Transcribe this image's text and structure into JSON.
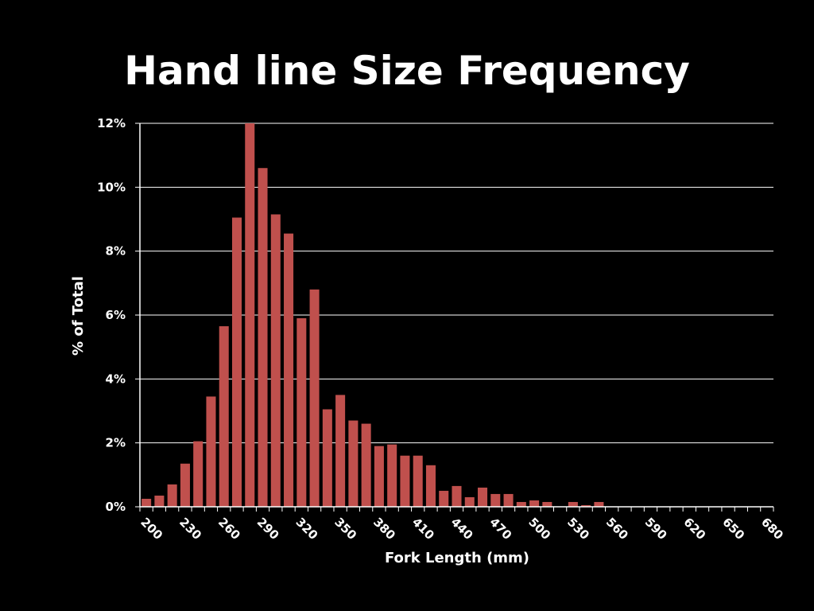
{
  "chart_data": {
    "type": "bar",
    "title": "Hand line Size Frequency",
    "xlabel": "Fork Length (mm)",
    "ylabel": "% of Total",
    "y_tick_labels": [
      "0%",
      "2%",
      "4%",
      "6%",
      "8%",
      "10%",
      "12%"
    ],
    "y_ticks": [
      0,
      2,
      4,
      6,
      8,
      10,
      12
    ],
    "ylim": [
      0,
      12
    ],
    "x_tick_labels": [
      "200",
      "230",
      "260",
      "290",
      "320",
      "350",
      "380",
      "410",
      "440",
      "470",
      "500",
      "530",
      "560",
      "590",
      "620",
      "650",
      "680"
    ],
    "categories": [
      200,
      210,
      220,
      230,
      240,
      250,
      260,
      270,
      280,
      290,
      300,
      310,
      320,
      330,
      340,
      350,
      360,
      370,
      380,
      390,
      400,
      410,
      420,
      430,
      440,
      450,
      460,
      470,
      480,
      490,
      500,
      510,
      520,
      530,
      540,
      550,
      560,
      570,
      580,
      590,
      600,
      610,
      620,
      630,
      640,
      650,
      660,
      670,
      680
    ],
    "values": [
      0.25,
      0.35,
      0.7,
      1.35,
      2.05,
      3.45,
      5.65,
      9.05,
      12.0,
      10.6,
      9.15,
      8.55,
      5.9,
      6.8,
      3.05,
      3.5,
      2.7,
      2.6,
      1.9,
      1.95,
      1.6,
      1.6,
      1.3,
      0.5,
      0.65,
      0.3,
      0.6,
      0.4,
      0.4,
      0.15,
      0.2,
      0.15,
      0,
      0.15,
      0.05,
      0.15,
      0,
      0,
      0,
      0,
      0,
      0,
      0,
      0,
      0,
      0,
      0,
      0,
      0
    ],
    "grid": true,
    "colors": {
      "background": "#000000",
      "bar": "#c0504d",
      "grid": "#ffffff",
      "text": "#ffffff"
    }
  }
}
